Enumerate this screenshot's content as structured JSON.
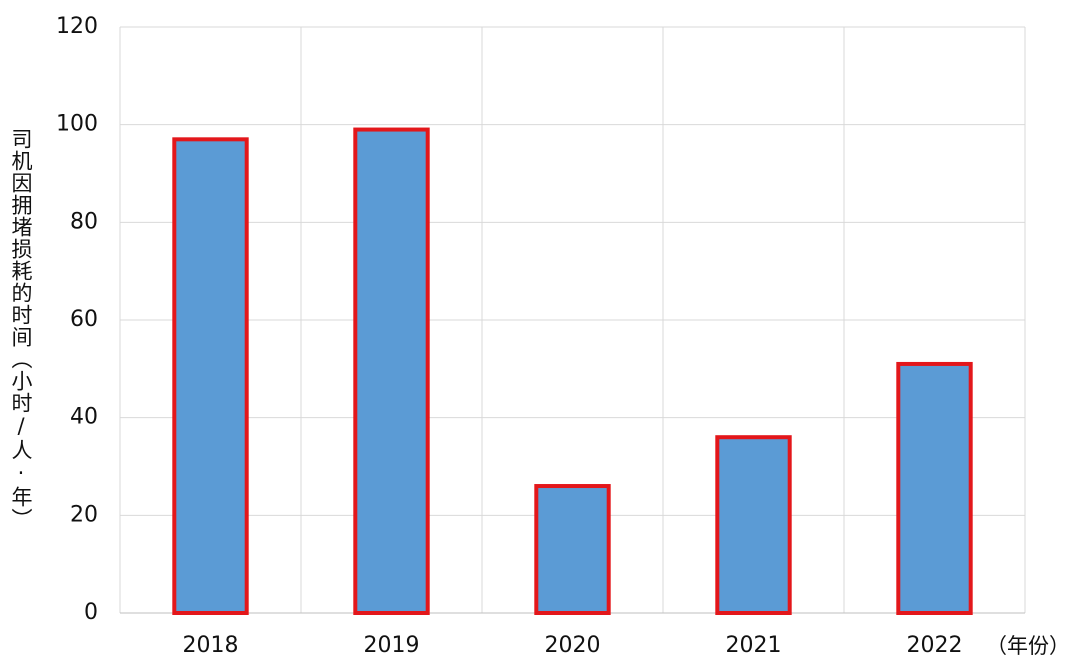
{
  "chart_data": {
    "type": "bar",
    "y_label": "司机因拥堵损耗的时间（小时/人·年）",
    "x_label": "（年份）",
    "categories": [
      "2018",
      "2019",
      "2020",
      "2021",
      "2022"
    ],
    "values": [
      97,
      99,
      26,
      36,
      51
    ],
    "color": "#5b9bd5",
    "edge_color": "#e3171b",
    "ylim": [
      0,
      120
    ],
    "yticks": [
      0,
      20,
      40,
      60,
      80,
      100,
      120
    ],
    "grid": true
  }
}
